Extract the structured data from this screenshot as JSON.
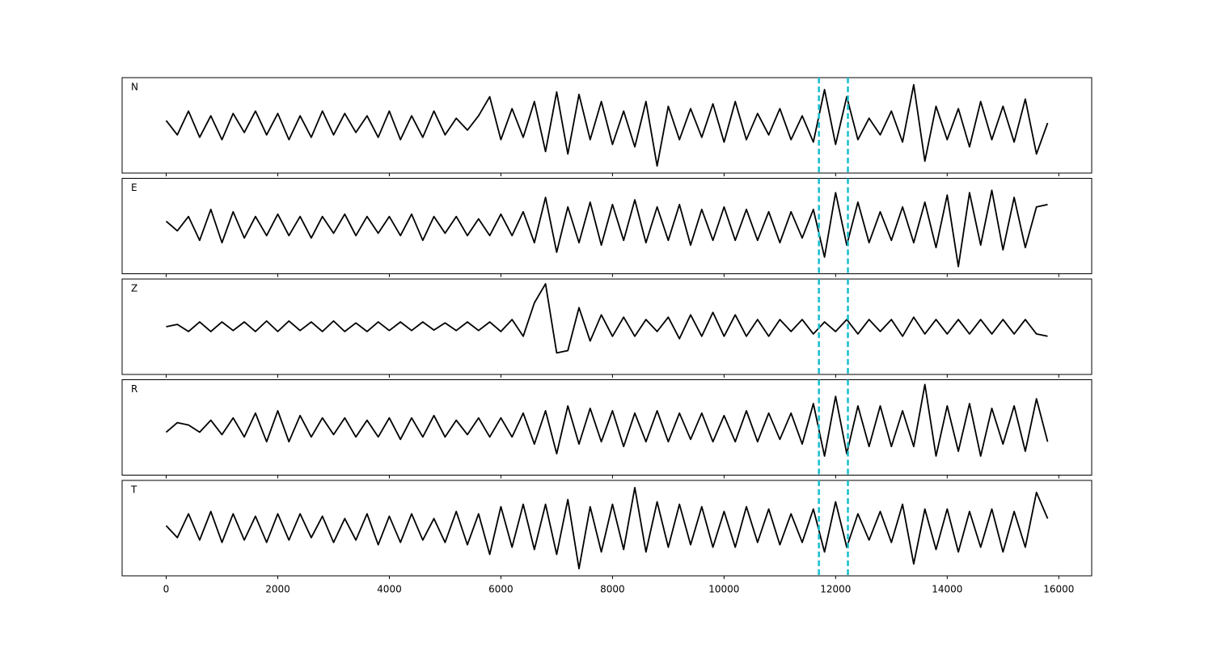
{
  "chart_data": {
    "type": "line",
    "x": [
      0,
      200,
      400,
      600,
      800,
      1000,
      1200,
      1400,
      1600,
      1800,
      2000,
      2200,
      2400,
      2600,
      2800,
      3000,
      3200,
      3400,
      3600,
      3800,
      4000,
      4200,
      4400,
      4600,
      4800,
      5000,
      5200,
      5400,
      5600,
      5800,
      6000,
      6200,
      6400,
      6600,
      6800,
      7000,
      7200,
      7400,
      7600,
      7800,
      8000,
      8200,
      8400,
      8600,
      8800,
      9000,
      9200,
      9400,
      9600,
      9800,
      10000,
      10200,
      10400,
      10600,
      10800,
      11000,
      11200,
      11400,
      11600,
      11800,
      12000,
      12200,
      12400,
      12600,
      12800,
      13000,
      13200,
      13400,
      13600,
      13800,
      14000,
      14200,
      14400,
      14600,
      14800,
      15000,
      15200,
      15400,
      15600,
      15800
    ],
    "series": [
      {
        "name": "N",
        "color": "#000000",
        "values": [
          0.1,
          -0.2,
          0.3,
          -0.25,
          0.2,
          -0.3,
          0.25,
          -0.15,
          0.3,
          -0.2,
          0.25,
          -0.3,
          0.2,
          -0.25,
          0.3,
          -0.2,
          0.25,
          -0.15,
          0.2,
          -0.25,
          0.3,
          -0.3,
          0.2,
          -0.25,
          0.3,
          -0.2,
          0.15,
          -0.1,
          0.2,
          0.6,
          -0.3,
          0.35,
          -0.25,
          0.5,
          -0.55,
          0.7,
          -0.6,
          0.65,
          -0.3,
          0.5,
          -0.4,
          0.3,
          -0.45,
          0.5,
          -0.85,
          0.4,
          -0.3,
          0.35,
          -0.25,
          0.45,
          -0.35,
          0.5,
          -0.3,
          0.25,
          -0.2,
          0.35,
          -0.3,
          0.2,
          -0.35,
          0.75,
          -0.4,
          0.6,
          -0.3,
          0.15,
          -0.2,
          0.3,
          -0.35,
          0.85,
          -0.75,
          0.4,
          -0.3,
          0.35,
          -0.45,
          0.5,
          -0.3,
          0.4,
          -0.35,
          0.55,
          -0.6,
          0.05
        ]
      },
      {
        "name": "E",
        "color": "#000000",
        "values": [
          0.1,
          -0.1,
          0.2,
          -0.3,
          0.35,
          -0.35,
          0.3,
          -0.25,
          0.2,
          -0.2,
          0.25,
          -0.2,
          0.2,
          -0.25,
          0.2,
          -0.15,
          0.25,
          -0.2,
          0.2,
          -0.15,
          0.2,
          -0.2,
          0.25,
          -0.3,
          0.2,
          -0.15,
          0.2,
          -0.2,
          0.15,
          -0.2,
          0.25,
          -0.2,
          0.3,
          -0.35,
          0.6,
          -0.55,
          0.4,
          -0.35,
          0.5,
          -0.4,
          0.45,
          -0.3,
          0.55,
          -0.35,
          0.4,
          -0.3,
          0.45,
          -0.4,
          0.35,
          -0.3,
          0.4,
          -0.3,
          0.35,
          -0.3,
          0.3,
          -0.35,
          0.3,
          -0.25,
          0.35,
          -0.65,
          0.7,
          -0.4,
          0.5,
          -0.35,
          0.3,
          -0.3,
          0.4,
          -0.35,
          0.5,
          -0.45,
          0.65,
          -0.85,
          0.7,
          -0.4,
          0.75,
          -0.5,
          0.6,
          -0.45,
          0.4,
          0.45
        ]
      },
      {
        "name": "Z",
        "color": "#000000",
        "values": [
          0.0,
          0.05,
          -0.1,
          0.1,
          -0.1,
          0.1,
          -0.08,
          0.1,
          -0.1,
          0.12,
          -0.1,
          0.12,
          -0.08,
          0.1,
          -0.1,
          0.12,
          -0.1,
          0.08,
          -0.1,
          0.1,
          -0.08,
          0.1,
          -0.08,
          0.1,
          -0.07,
          0.08,
          -0.08,
          0.1,
          -0.08,
          0.1,
          -0.1,
          0.15,
          -0.2,
          0.5,
          0.9,
          -0.55,
          -0.5,
          0.4,
          -0.3,
          0.25,
          -0.2,
          0.2,
          -0.2,
          0.15,
          -0.1,
          0.2,
          -0.25,
          0.25,
          -0.2,
          0.3,
          -0.2,
          0.25,
          -0.2,
          0.15,
          -0.2,
          0.15,
          -0.1,
          0.15,
          -0.15,
          0.1,
          -0.1,
          0.15,
          -0.15,
          0.15,
          -0.1,
          0.15,
          -0.2,
          0.2,
          -0.15,
          0.15,
          -0.15,
          0.15,
          -0.15,
          0.15,
          -0.15,
          0.15,
          -0.15,
          0.15,
          -0.15,
          -0.2
        ]
      },
      {
        "name": "R",
        "color": "#000000",
        "values": [
          -0.1,
          0.1,
          0.05,
          -0.1,
          0.15,
          -0.15,
          0.2,
          -0.2,
          0.3,
          -0.3,
          0.35,
          -0.3,
          0.25,
          -0.2,
          0.2,
          -0.15,
          0.2,
          -0.2,
          0.15,
          -0.2,
          0.2,
          -0.25,
          0.2,
          -0.2,
          0.25,
          -0.2,
          0.15,
          -0.15,
          0.2,
          -0.2,
          0.2,
          -0.2,
          0.3,
          -0.35,
          0.35,
          -0.55,
          0.45,
          -0.35,
          0.4,
          -0.3,
          0.35,
          -0.4,
          0.3,
          -0.3,
          0.35,
          -0.3,
          0.3,
          -0.25,
          0.3,
          -0.3,
          0.25,
          -0.3,
          0.35,
          -0.3,
          0.3,
          -0.25,
          0.3,
          -0.35,
          0.5,
          -0.6,
          0.65,
          -0.55,
          0.45,
          -0.4,
          0.45,
          -0.4,
          0.35,
          -0.4,
          0.9,
          -0.6,
          0.45,
          -0.5,
          0.5,
          -0.6,
          0.4,
          -0.35,
          0.45,
          -0.5,
          0.6,
          -0.3
        ]
      },
      {
        "name": "T",
        "color": "#000000",
        "values": [
          0.05,
          -0.2,
          0.3,
          -0.25,
          0.35,
          -0.3,
          0.3,
          -0.25,
          0.25,
          -0.3,
          0.3,
          -0.25,
          0.3,
          -0.2,
          0.25,
          -0.3,
          0.2,
          -0.25,
          0.3,
          -0.35,
          0.25,
          -0.3,
          0.3,
          -0.25,
          0.2,
          -0.3,
          0.35,
          -0.35,
          0.3,
          -0.55,
          0.45,
          -0.4,
          0.5,
          -0.45,
          0.5,
          -0.55,
          0.6,
          -0.85,
          0.45,
          -0.5,
          0.5,
          -0.45,
          0.85,
          -0.5,
          0.55,
          -0.4,
          0.5,
          -0.35,
          0.45,
          -0.4,
          0.35,
          -0.4,
          0.45,
          -0.3,
          0.4,
          -0.35,
          0.3,
          -0.3,
          0.4,
          -0.5,
          0.55,
          -0.4,
          0.3,
          -0.25,
          0.35,
          -0.3,
          0.5,
          -0.75,
          0.4,
          -0.45,
          0.4,
          -0.5,
          0.35,
          -0.4,
          0.4,
          -0.5,
          0.35,
          -0.4,
          0.75,
          0.2
        ]
      }
    ],
    "vlines": [
      11700,
      12220
    ],
    "vline_color": "#17becf",
    "xlim": [
      -790,
      16590
    ],
    "xticks": [
      0,
      2000,
      4000,
      6000,
      8000,
      10000,
      12000,
      14000,
      16000
    ],
    "ylim": [
      -1,
      1
    ]
  }
}
